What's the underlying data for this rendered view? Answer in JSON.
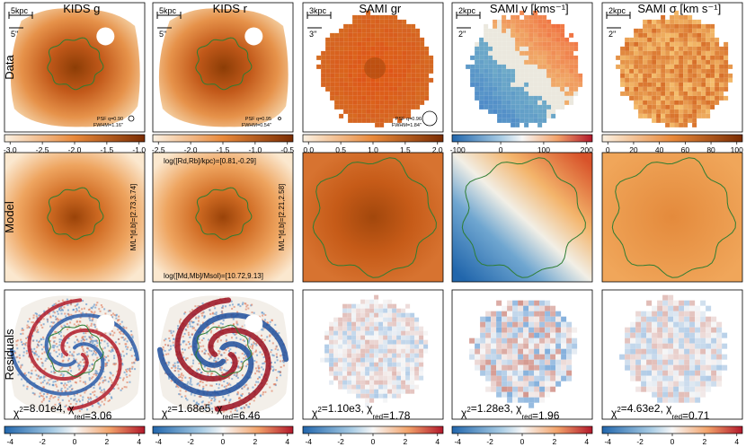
{
  "figure": {
    "column_titles": [
      "KIDS g",
      "KIDS r",
      "SAMI gr",
      "SAMI v [kms⁻¹]",
      "SAMI σ [km s⁻¹]"
    ],
    "row_labels": [
      "Data",
      "Model",
      "Residuals"
    ],
    "scale_bars": [
      {
        "kpc": "5kpc",
        "arcsec": "5''"
      },
      {
        "kpc": "5kpc",
        "arcsec": "5''"
      },
      {
        "kpc": "3kpc",
        "arcsec": "3''"
      },
      {
        "kpc": "2kpc",
        "arcsec": "2''"
      },
      {
        "kpc": "2kpc",
        "arcsec": "2''"
      }
    ],
    "psf_notes": [
      {
        "line1": "PSF q=0.90",
        "line2": "FWHM=1.16''"
      },
      {
        "line1": "PSF q=0.95",
        "line2": "FWHM=0.54''"
      },
      {
        "line1": "PSF q=0.96",
        "line2": "FWHM=1.84''"
      }
    ],
    "model_annotations": {
      "ml_g": "M/L*[d,b]=[2.73,3.74]",
      "ml_r": "M/L*[d,b]=[2.21,2.58]",
      "radii": "log([Rd,Rb]/kpc)=[0.81,-0.29]",
      "masses": "log([Md,Mb]/Msol)=[10.72,9.13]"
    },
    "residual_stats": [
      {
        "chi2": "8.01e4",
        "chi2_red": "3.06"
      },
      {
        "chi2": "1.68e5",
        "chi2_red": "6.46"
      },
      {
        "chi2": "1.10e3",
        "chi2_red": "1.78"
      },
      {
        "chi2": "1.28e3",
        "chi2_red": "1.96"
      },
      {
        "chi2": "4.63e2",
        "chi2_red": "0.71"
      }
    ],
    "top_colorbars": [
      {
        "ticks": [
          "-3.0",
          "-2.5",
          "-2.0",
          "-1.5",
          "-1.0"
        ],
        "colormap": "orange"
      },
      {
        "ticks": [
          "-2.5",
          "-2.0",
          "-1.5",
          "-1.0",
          "-0.5"
        ],
        "colormap": "orange"
      },
      {
        "ticks": [
          "0.0",
          "0.5",
          "1.0",
          "1.5",
          "2.0"
        ],
        "colormap": "orange"
      },
      {
        "ticks": [
          "-100",
          "0",
          "100",
          "200"
        ],
        "colormap": "diverging"
      },
      {
        "ticks": [
          "0",
          "20",
          "40",
          "60",
          "80",
          "100"
        ],
        "colormap": "orange"
      }
    ],
    "bottom_colorbar_ticks": [
      "-4",
      "-2",
      "0",
      "2",
      "4"
    ],
    "colors": {
      "contour": "#2e7d32",
      "orange_dark": "#8c3d06",
      "orange_mid": "#e07a2e",
      "orange_light": "#f5dcb8",
      "blue": "#2166ac",
      "red": "#b2182b",
      "neutral": "#f7f7f7"
    }
  }
}
